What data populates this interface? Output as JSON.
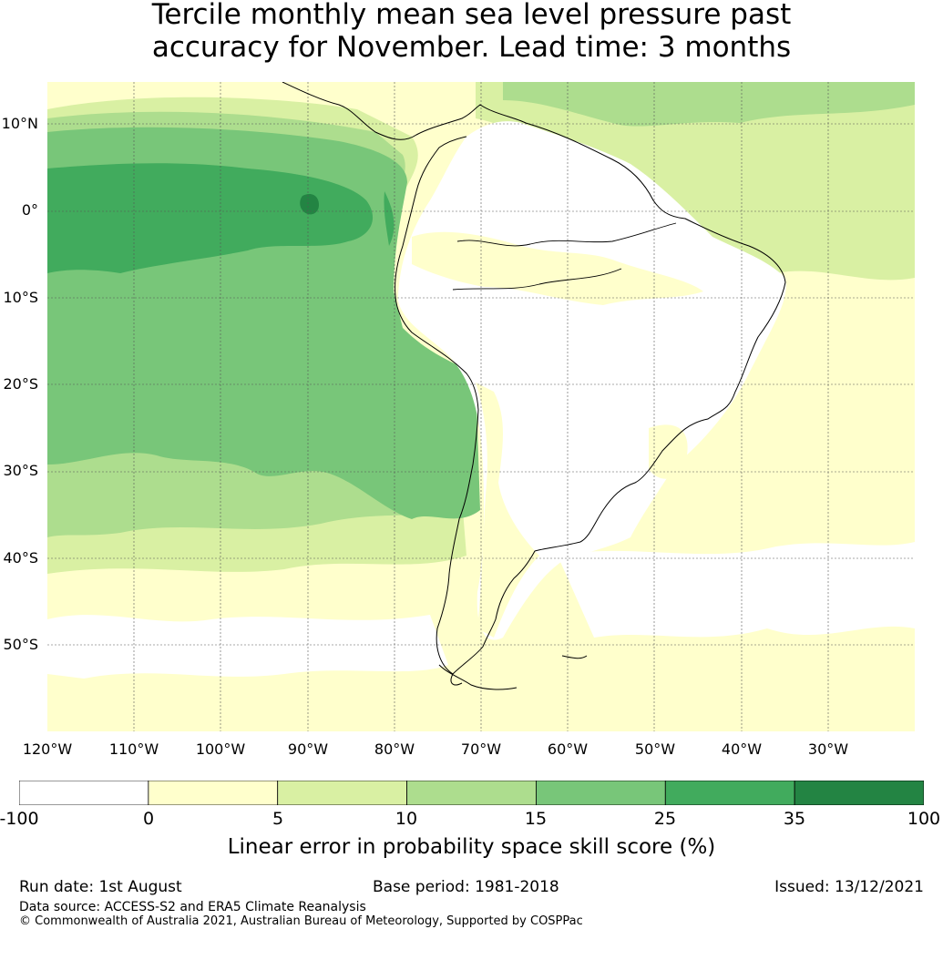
{
  "title": {
    "line1": "Tercile monthly mean sea level pressure past",
    "line2": "accuracy for November. Lead time: 3 months"
  },
  "map": {
    "latitude_labels": [
      "10°N",
      "0°",
      "10°S",
      "20°S",
      "30°S",
      "40°S",
      "50°S"
    ],
    "longitude_labels": [
      "120°W",
      "110°W",
      "100°W",
      "90°W",
      "80°W",
      "70°W",
      "60°W",
      "50°W",
      "40°W",
      "30°W"
    ],
    "colors": {
      "-100 to 0": "#ffffff",
      "0 to 5": "#ffffcc",
      "5 to 10": "#d9f0a3",
      "10 to 15": "#addd8e",
      "15 to 25": "#78c679",
      "25 to 35": "#41ab5d",
      "35 to 100": "#238443"
    }
  },
  "colorbar": {
    "ticks": [
      "-100",
      "0",
      "5",
      "10",
      "15",
      "25",
      "35",
      "100"
    ],
    "bins": [
      {
        "from": -100,
        "to": 0,
        "color": "#ffffff"
      },
      {
        "from": 0,
        "to": 5,
        "color": "#ffffcc"
      },
      {
        "from": 5,
        "to": 10,
        "color": "#d9f0a3"
      },
      {
        "from": 10,
        "to": 15,
        "color": "#addd8e"
      },
      {
        "from": 15,
        "to": 25,
        "color": "#78c679"
      },
      {
        "from": 25,
        "to": 35,
        "color": "#41ab5d"
      },
      {
        "from": 35,
        "to": 100,
        "color": "#238443"
      }
    ],
    "label": "Linear error in probability space skill score (%)"
  },
  "footer": {
    "run_date": "Run date: 1st August",
    "base_period": "Base period: 1981-2018",
    "issued": "Issued: 13/12/2021",
    "data_source": "Data source: ACCESS-S2 and ERA5 Climate Reanalysis",
    "copyright": "© Commonwealth of Australia 2021, Australian Bureau of Meteorology, Supported by COSPPac"
  }
}
